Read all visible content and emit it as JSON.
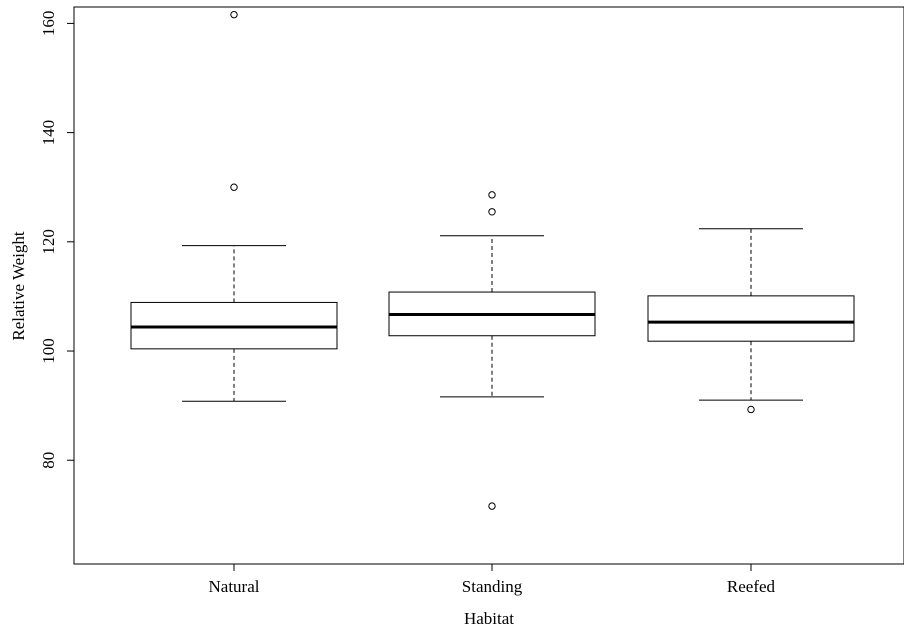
{
  "chart_data": {
    "type": "box",
    "title": "",
    "xlabel": "Habitat",
    "ylabel": "Relative Weight",
    "ylim": [
      61,
      163
    ],
    "yticks": [
      80,
      100,
      120,
      140,
      160
    ],
    "grid": false,
    "categories": [
      "Natural",
      "Standing",
      "Reefed"
    ],
    "boxes": [
      {
        "category": "Natural",
        "whisker_low": 90.8,
        "q1": 100.4,
        "median": 104.4,
        "q3": 108.9,
        "whisker_high": 119.3,
        "outliers": [
          130.0,
          161.6
        ]
      },
      {
        "category": "Standing",
        "whisker_low": 91.6,
        "q1": 102.8,
        "median": 106.7,
        "q3": 110.8,
        "whisker_high": 121.1,
        "outliers": [
          71.6,
          125.5,
          128.6
        ]
      },
      {
        "category": "Reefed",
        "whisker_low": 91.0,
        "q1": 101.8,
        "median": 105.3,
        "q3": 110.1,
        "whisker_high": 122.4,
        "outliers": [
          89.3
        ]
      }
    ]
  }
}
